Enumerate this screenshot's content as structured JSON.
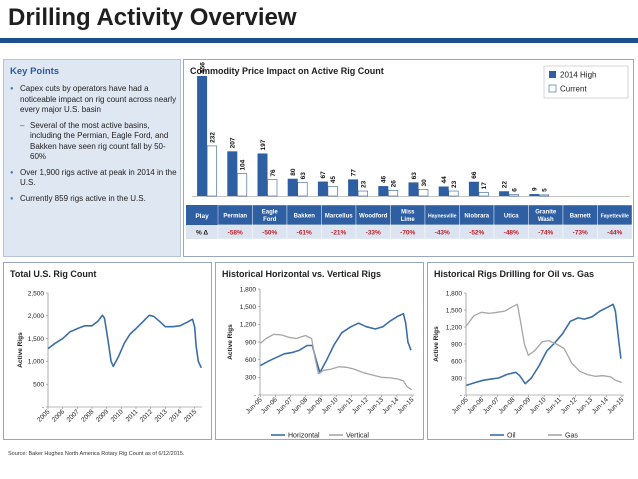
{
  "page": {
    "title": "Drilling Activity Overview",
    "source": "Source: Baker Hughes North America Rotary Rig Count as of 6/12/2015."
  },
  "key_points": {
    "title": "Key Points",
    "items": [
      {
        "level": 1,
        "text": "Capex cuts by operators have had a noticeable impact on rig count across nearly every major U.S. basin"
      },
      {
        "level": 2,
        "text": "Several of the most active basins, including the Permian, Eagle Ford, and Bakken have seen rig count fall by 50-60%"
      },
      {
        "level": 1,
        "text": "Over 1,900 rigs active at peak in 2014 in the U.S."
      },
      {
        "level": 1,
        "text": "Currently 859 rigs active in the U.S."
      }
    ]
  },
  "colors": {
    "bar_2014": "#2e5fa3",
    "bar_current": "#ffffff",
    "bar_current_border": "#2e5fa3",
    "line_primary": "#3b6ea8",
    "line_secondary": "#a6a6a6",
    "table_header": "#2e5fa3",
    "table_row": "#dbe4f0"
  },
  "chart_data": [
    {
      "id": "commodity",
      "type": "bar",
      "title": "Commodity Price Impact on Active Rig Count",
      "categories": [
        "Permian",
        "Eagle Ford",
        "Bakken",
        "Marcellus",
        "Woodford",
        "Miss Lime",
        "Haynesville",
        "Niobrara",
        "Utica",
        "Granite Wash",
        "Barnett",
        "Fayetteville"
      ],
      "series": [
        {
          "name": "2014 High",
          "values": [
            556,
            207,
            197,
            80,
            67,
            77,
            46,
            63,
            44,
            66,
            22,
            9
          ]
        },
        {
          "name": "Current",
          "values": [
            232,
            104,
            76,
            63,
            45,
            23,
            26,
            30,
            23,
            17,
            6,
            5
          ]
        }
      ],
      "table": {
        "header_label": "Play",
        "row_label": "% Δ",
        "values": [
          "-58%",
          "-50%",
          "-61%",
          "-21%",
          "-33%",
          "-70%",
          "-43%",
          "-52%",
          "-48%",
          "-74%",
          "-73%",
          "-44%"
        ]
      },
      "legend": "top-right"
    },
    {
      "id": "total",
      "type": "line",
      "title": "Total U.S. Rig Count",
      "ylabel": "Active Rigs",
      "ylim": [
        0,
        2500
      ],
      "yticks": [
        {
          "v": 0,
          "label": "-"
        },
        {
          "v": 500,
          "label": "500"
        },
        {
          "v": 1000,
          "label": "1,000"
        },
        {
          "v": 1500,
          "label": "1,500"
        },
        {
          "v": 2000,
          "label": "2,000"
        },
        {
          "v": 2500,
          "label": "2,500"
        }
      ],
      "xlim": [
        2005,
        2015.5
      ],
      "xticks": [
        {
          "v": 2005,
          "label": "2005"
        },
        {
          "v": 2006,
          "label": "2006"
        },
        {
          "v": 2007,
          "label": "2007"
        },
        {
          "v": 2008,
          "label": "2008"
        },
        {
          "v": 2009,
          "label": "2009"
        },
        {
          "v": 2010,
          "label": "2010"
        },
        {
          "v": 2011,
          "label": "2011"
        },
        {
          "v": 2012,
          "label": "2012"
        },
        {
          "v": 2013,
          "label": "2013"
        },
        {
          "v": 2014,
          "label": "2014"
        },
        {
          "v": 2015,
          "label": "2015"
        }
      ],
      "series": [
        {
          "points": [
            [
              2005,
              1280
            ],
            [
              2005.5,
              1400
            ],
            [
              2006,
              1500
            ],
            [
              2006.5,
              1650
            ],
            [
              2007,
              1720
            ],
            [
              2007.5,
              1780
            ],
            [
              2008,
              1780
            ],
            [
              2008.4,
              1880
            ],
            [
              2008.7,
              2010
            ],
            [
              2008.85,
              1950
            ],
            [
              2009.1,
              1450
            ],
            [
              2009.3,
              1000
            ],
            [
              2009.45,
              890
            ],
            [
              2009.8,
              1100
            ],
            [
              2010.2,
              1400
            ],
            [
              2010.6,
              1600
            ],
            [
              2011,
              1720
            ],
            [
              2011.5,
              1880
            ],
            [
              2011.9,
              2010
            ],
            [
              2012.2,
              1990
            ],
            [
              2012.6,
              1880
            ],
            [
              2013,
              1760
            ],
            [
              2013.5,
              1760
            ],
            [
              2014,
              1780
            ],
            [
              2014.5,
              1860
            ],
            [
              2014.85,
              1925
            ],
            [
              2015.0,
              1750
            ],
            [
              2015.1,
              1340
            ],
            [
              2015.25,
              1000
            ],
            [
              2015.45,
              860
            ]
          ]
        }
      ]
    },
    {
      "id": "horizvert",
      "type": "line",
      "title": "Historical Horizontal vs. Vertical Rigs",
      "ylabel": "Active Rigs",
      "ylim": [
        0,
        1800
      ],
      "yticks": [
        {
          "v": 0,
          "label": "-"
        },
        {
          "v": 300,
          "label": "300"
        },
        {
          "v": 600,
          "label": "600"
        },
        {
          "v": 900,
          "label": "900"
        },
        {
          "v": 1200,
          "label": "1,200"
        },
        {
          "v": 1500,
          "label": "1,500"
        },
        {
          "v": 1800,
          "label": "1,800"
        }
      ],
      "xlim": [
        2005.4,
        2015.55
      ],
      "xticks": [
        {
          "v": 2005.42,
          "label": "Jun-05"
        },
        {
          "v": 2006.42,
          "label": "Jun-06"
        },
        {
          "v": 2007.42,
          "label": "Jun-07"
        },
        {
          "v": 2008.42,
          "label": "Jun-08"
        },
        {
          "v": 2009.42,
          "label": "Jun-09"
        },
        {
          "v": 2010.42,
          "label": "Jun-10"
        },
        {
          "v": 2011.42,
          "label": "Jun-11"
        },
        {
          "v": 2012.42,
          "label": "Jun-12"
        },
        {
          "v": 2013.42,
          "label": "Jun-13"
        },
        {
          "v": 2014.42,
          "label": "Jun-14"
        },
        {
          "v": 2015.42,
          "label": "Jun-15"
        }
      ],
      "legend": "bottom",
      "series": [
        {
          "name": "Horizontal",
          "points": [
            [
              2005.42,
              500
            ],
            [
              2006,
              580
            ],
            [
              2006.5,
              640
            ],
            [
              2007,
              700
            ],
            [
              2007.5,
              720
            ],
            [
              2008,
              760
            ],
            [
              2008.5,
              840
            ],
            [
              2008.85,
              840
            ],
            [
              2009.1,
              600
            ],
            [
              2009.35,
              380
            ],
            [
              2009.8,
              600
            ],
            [
              2010.3,
              860
            ],
            [
              2010.8,
              1060
            ],
            [
              2011.4,
              1160
            ],
            [
              2011.9,
              1220
            ],
            [
              2012.4,
              1160
            ],
            [
              2013,
              1120
            ],
            [
              2013.5,
              1160
            ],
            [
              2014,
              1260
            ],
            [
              2014.5,
              1340
            ],
            [
              2014.85,
              1380
            ],
            [
              2015.0,
              1220
            ],
            [
              2015.15,
              900
            ],
            [
              2015.35,
              760
            ]
          ]
        },
        {
          "name": "Vertical",
          "points": [
            [
              2005.42,
              880
            ],
            [
              2005.8,
              960
            ],
            [
              2006.3,
              1030
            ],
            [
              2006.8,
              1020
            ],
            [
              2007.3,
              980
            ],
            [
              2007.8,
              960
            ],
            [
              2008.4,
              1010
            ],
            [
              2008.8,
              960
            ],
            [
              2009.05,
              600
            ],
            [
              2009.25,
              360
            ],
            [
              2009.6,
              420
            ],
            [
              2010.1,
              440
            ],
            [
              2010.6,
              480
            ],
            [
              2011.1,
              470
            ],
            [
              2011.6,
              440
            ],
            [
              2012.2,
              380
            ],
            [
              2012.8,
              340
            ],
            [
              2013.4,
              300
            ],
            [
              2014,
              290
            ],
            [
              2014.5,
              270
            ],
            [
              2014.85,
              240
            ],
            [
              2015.1,
              140
            ],
            [
              2015.4,
              90
            ]
          ]
        }
      ]
    },
    {
      "id": "oilgas",
      "type": "line",
      "title": "Historical Rigs Drilling for Oil vs. Gas",
      "ylabel": "Active Rigs",
      "ylim": [
        0,
        1800
      ],
      "yticks": [
        {
          "v": 0,
          "label": "-"
        },
        {
          "v": 300,
          "label": "300"
        },
        {
          "v": 600,
          "label": "600"
        },
        {
          "v": 900,
          "label": "900"
        },
        {
          "v": 1200,
          "label": "1,200"
        },
        {
          "v": 1500,
          "label": "1,500"
        },
        {
          "v": 1800,
          "label": "1,800"
        }
      ],
      "xlim": [
        2005.4,
        2015.55
      ],
      "xticks": [
        {
          "v": 2005.42,
          "label": "Jun-05"
        },
        {
          "v": 2006.42,
          "label": "Jun-06"
        },
        {
          "v": 2007.42,
          "label": "Jun-07"
        },
        {
          "v": 2008.42,
          "label": "Jun-08"
        },
        {
          "v": 2009.42,
          "label": "Jun-09"
        },
        {
          "v": 2010.42,
          "label": "Jun-10"
        },
        {
          "v": 2011.42,
          "label": "Jun-11"
        },
        {
          "v": 2012.42,
          "label": "Jun-12"
        },
        {
          "v": 2013.42,
          "label": "Jun-13"
        },
        {
          "v": 2014.42,
          "label": "Jun-14"
        },
        {
          "v": 2015.42,
          "label": "Jun-15"
        }
      ],
      "legend": "bottom",
      "series": [
        {
          "name": "Oil",
          "points": [
            [
              2005.42,
              170
            ],
            [
              2006,
              220
            ],
            [
              2006.5,
              260
            ],
            [
              2007,
              280
            ],
            [
              2007.5,
              300
            ],
            [
              2008,
              360
            ],
            [
              2008.6,
              400
            ],
            [
              2008.85,
              340
            ],
            [
              2009.2,
              200
            ],
            [
              2009.6,
              300
            ],
            [
              2010.1,
              520
            ],
            [
              2010.6,
              780
            ],
            [
              2011.1,
              920
            ],
            [
              2011.6,
              1080
            ],
            [
              2012.1,
              1300
            ],
            [
              2012.6,
              1360
            ],
            [
              2013,
              1340
            ],
            [
              2013.5,
              1380
            ],
            [
              2014,
              1480
            ],
            [
              2014.5,
              1550
            ],
            [
              2014.85,
              1600
            ],
            [
              2015.0,
              1480
            ],
            [
              2015.15,
              1100
            ],
            [
              2015.35,
              640
            ]
          ]
        },
        {
          "name": "Gas",
          "points": [
            [
              2005.42,
              1220
            ],
            [
              2005.9,
              1400
            ],
            [
              2006.4,
              1460
            ],
            [
              2006.9,
              1440
            ],
            [
              2007.4,
              1460
            ],
            [
              2007.9,
              1480
            ],
            [
              2008.4,
              1560
            ],
            [
              2008.7,
              1600
            ],
            [
              2008.9,
              1300
            ],
            [
              2009.15,
              900
            ],
            [
              2009.4,
              700
            ],
            [
              2009.8,
              780
            ],
            [
              2010.3,
              940
            ],
            [
              2010.7,
              960
            ],
            [
              2011.2,
              900
            ],
            [
              2011.7,
              820
            ],
            [
              2012.2,
              560
            ],
            [
              2012.7,
              420
            ],
            [
              2013.2,
              360
            ],
            [
              2013.7,
              330
            ],
            [
              2014.2,
              340
            ],
            [
              2014.7,
              320
            ],
            [
              2015.0,
              260
            ],
            [
              2015.4,
              220
            ]
          ]
        }
      ]
    }
  ]
}
